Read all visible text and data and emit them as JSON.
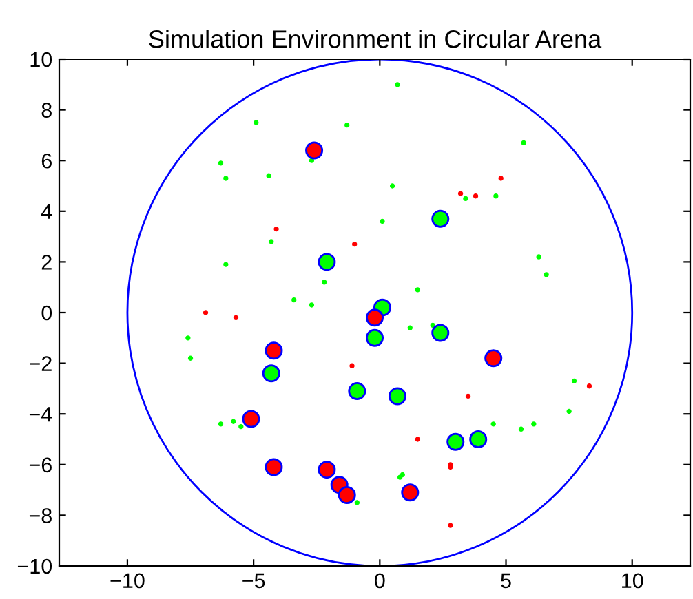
{
  "chart_data": {
    "type": "scatter",
    "title": "Simulation Environment in Circular Arena",
    "xlim": [
      -12.7,
      12.3
    ],
    "ylim": [
      -10,
      10
    ],
    "xticks": [
      {
        "value": -10,
        "label": "−10"
      },
      {
        "value": -5,
        "label": "−5"
      },
      0,
      5,
      10
    ],
    "yticks": [
      {
        "value": -10,
        "label": "−10"
      },
      {
        "value": -8,
        "label": "−8"
      },
      {
        "value": -6,
        "label": "−6"
      },
      {
        "value": -4,
        "label": "−4"
      },
      {
        "value": -2,
        "label": "−2"
      },
      0,
      2,
      4,
      6,
      8,
      10
    ],
    "grid": false,
    "marker": "circle",
    "series": [
      {
        "color": "#00ff00",
        "x": [
          -4.9,
          -1.3,
          -6.3,
          -6.1,
          -4.4,
          -2.7,
          0.1,
          -4.3,
          -6.1,
          -2.2,
          -3.4,
          -2.7,
          0.7,
          5.7,
          0.5,
          3.4,
          4.6,
          6.3,
          6.6,
          1.5,
          -7.6,
          -7.5,
          -6.3,
          -5.8,
          -5.5,
          -0.9,
          1.2,
          2.1,
          7.7,
          7.5,
          4.5,
          5.6,
          6.1,
          0.9,
          0.8
        ],
        "values": [
          7.5,
          7.4,
          5.9,
          5.3,
          5.4,
          6.0,
          3.6,
          2.8,
          1.9,
          1.2,
          0.5,
          0.3,
          9.0,
          6.7,
          5.0,
          4.5,
          4.6,
          2.2,
          1.5,
          0.9,
          -1.0,
          -1.8,
          -4.4,
          -4.3,
          -4.5,
          -7.5,
          -0.6,
          -0.5,
          -2.7,
          -3.9,
          -4.4,
          -4.6,
          -4.4,
          -6.4,
          -6.5
        ]
      },
      {
        "color": "#ff0000",
        "x": [
          -4.1,
          -1.0,
          -6.9,
          -5.7,
          4.8,
          3.2,
          3.8,
          -1.1,
          3.5,
          8.3,
          1.5,
          2.8,
          2.8,
          2.8
        ],
        "values": [
          3.3,
          2.7,
          0,
          -0.2,
          5.3,
          4.7,
          4.6,
          -2.1,
          -3.3,
          -2.9,
          -5.0,
          -6.0,
          -6.1,
          -8.4
        ]
      },
      {
        "type": "bubble",
        "color": "#00ff00",
        "x": [
          -2.1,
          2.4,
          0.1,
          -0.2,
          -4.3,
          -0.9,
          2.4,
          0.7,
          3.0,
          3.9
        ],
        "values": [
          2.0,
          3.7,
          0.2,
          -1.0,
          -2.4,
          -3.1,
          -0.8,
          -3.3,
          -5.1,
          -5.0
        ],
        "sizes": [
          1,
          1,
          1,
          1,
          1,
          1,
          1,
          1,
          1,
          1
        ]
      },
      {
        "type": "bubble",
        "color": "#ff0000",
        "x": [
          -2.6,
          -0.2,
          -4.2,
          4.5,
          -5.1,
          -4.2,
          -2.1,
          -1.6,
          -1.3,
          1.2
        ],
        "values": [
          6.4,
          -0.2,
          -1.5,
          -1.8,
          -4.2,
          -6.1,
          -6.2,
          -6.8,
          -7.2,
          -7.1
        ],
        "sizes": [
          1,
          1,
          1,
          1,
          1,
          1,
          1,
          1,
          1,
          1
        ]
      }
    ]
  }
}
